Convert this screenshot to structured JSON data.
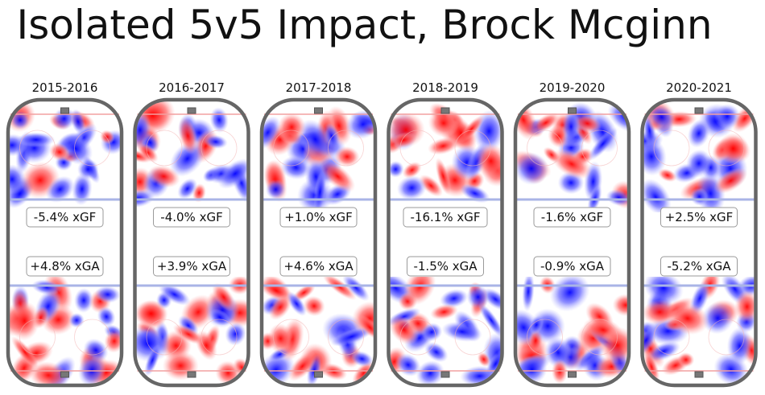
{
  "chart_data": {
    "type": "heatmap",
    "title": "Isolated 5v5 Impact, Brock Mcginn",
    "panels": [
      {
        "season": "2015-2016",
        "offense_label": "-5.4% xGF",
        "defense_label": "+4.8% xGA",
        "xgf_pct": -5.4,
        "xga_pct": 4.8
      },
      {
        "season": "2016-2017",
        "offense_label": "-4.0% xGF",
        "defense_label": "+3.9% xGA",
        "xgf_pct": -4.0,
        "xga_pct": 3.9
      },
      {
        "season": "2017-2018",
        "offense_label": "+1.0% xGF",
        "defense_label": "+4.6% xGA",
        "xgf_pct": 1.0,
        "xga_pct": 4.6
      },
      {
        "season": "2018-2019",
        "offense_label": "-16.1% xGF",
        "defense_label": "-1.5% xGA",
        "xgf_pct": -16.1,
        "xga_pct": -1.5
      },
      {
        "season": "2019-2020",
        "offense_label": "-1.6% xGF",
        "defense_label": "-0.9% xGA",
        "xgf_pct": -1.6,
        "xga_pct": -0.9
      },
      {
        "season": "2020-2021",
        "offense_label": "+2.5% xGF",
        "defense_label": "-5.2% xGA",
        "xgf_pct": 2.5,
        "xga_pct": -5.2
      }
    ],
    "colors": {
      "positive": "#ff0000",
      "negative": "#0000ff",
      "board": "#666666",
      "blue_line": "#a9b4e6",
      "goal_line": "#f2a0a0"
    }
  }
}
